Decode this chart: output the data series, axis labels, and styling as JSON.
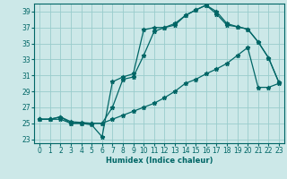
{
  "xlabel": "Humidex (Indice chaleur)",
  "bg_color": "#cce8e8",
  "grid_color": "#99cccc",
  "line_color": "#006666",
  "xlim_min": -0.5,
  "xlim_max": 23.5,
  "ylim_min": 22.5,
  "ylim_max": 40.0,
  "xticks": [
    0,
    1,
    2,
    3,
    4,
    5,
    6,
    7,
    8,
    9,
    10,
    11,
    12,
    13,
    14,
    15,
    16,
    17,
    18,
    19,
    20,
    21,
    22,
    23
  ],
  "yticks": [
    23,
    25,
    27,
    29,
    31,
    33,
    35,
    37,
    39
  ],
  "line1_x": [
    0,
    1,
    2,
    3,
    4,
    5,
    6,
    7,
    8,
    9,
    10,
    11,
    12,
    13,
    14,
    15,
    16,
    17,
    18,
    19,
    20,
    21,
    22,
    23
  ],
  "line1_y": [
    25.5,
    25.5,
    25.5,
    25.0,
    25.0,
    24.8,
    23.3,
    30.2,
    30.8,
    31.2,
    36.7,
    37.0,
    37.0,
    37.5,
    38.5,
    39.2,
    39.8,
    38.7,
    37.3,
    37.1,
    36.8,
    35.2,
    33.2,
    30.1
  ],
  "line2_x": [
    0,
    1,
    2,
    3,
    4,
    5,
    6,
    7,
    8,
    9,
    10,
    11,
    12,
    13,
    14,
    15,
    16,
    17,
    18,
    19,
    20,
    21,
    22,
    23
  ],
  "line2_y": [
    25.5,
    25.5,
    25.8,
    25.0,
    25.0,
    25.0,
    25.0,
    27.0,
    30.5,
    30.8,
    33.5,
    36.5,
    37.0,
    37.3,
    38.5,
    39.2,
    39.8,
    39.0,
    37.5,
    37.1,
    36.8,
    35.2,
    33.2,
    30.1
  ],
  "line3_x": [
    0,
    1,
    2,
    3,
    4,
    5,
    6,
    7,
    8,
    9,
    10,
    11,
    12,
    13,
    14,
    15,
    16,
    17,
    18,
    19,
    20,
    21,
    22,
    23
  ],
  "line3_y": [
    25.5,
    25.5,
    25.8,
    25.2,
    25.1,
    25.0,
    25.0,
    25.5,
    26.0,
    26.5,
    27.0,
    27.5,
    28.2,
    29.0,
    30.0,
    30.5,
    31.2,
    31.8,
    32.5,
    33.5,
    34.5,
    29.5,
    29.5,
    30.0
  ],
  "tick_fontsize": 5.5,
  "xlabel_fontsize": 6.0,
  "marker": "*",
  "markersize": 3.5,
  "linewidth": 0.9
}
